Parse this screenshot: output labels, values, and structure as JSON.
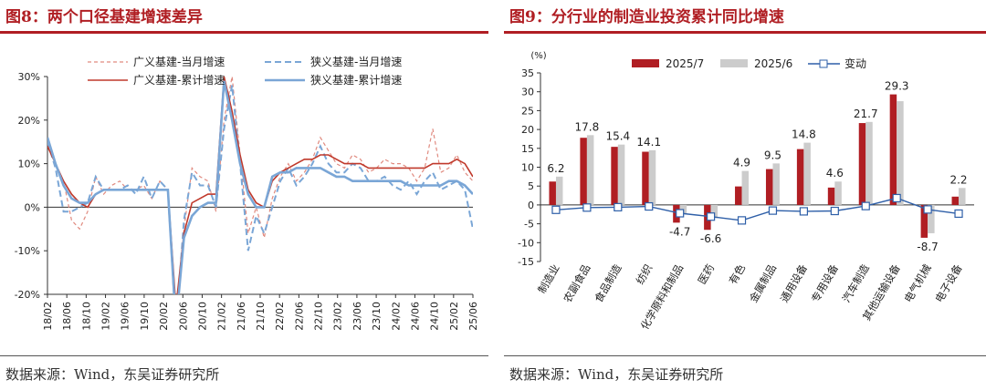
{
  "left": {
    "title": "图8：两个口径基建增速差异",
    "source": "数据来源：Wind，东吴证券研究所"
  },
  "right": {
    "title": "图9：分行业的制造业投资累计同比增速",
    "source": "数据来源：Wind，东吴证券研究所"
  },
  "colors": {
    "accent": "#b01e23",
    "broad": "#c0392b",
    "broad_monthly": "#e08a7f",
    "narrow": "#7aa6d6",
    "narrow_dashed": "#7aa6d6",
    "bar_jul": "#b01e23",
    "bar_jun": "#cccccc",
    "change_line": "#2e5fa8"
  },
  "chart_data": [
    {
      "type": "line",
      "title": "两个口径基建增速差异",
      "x_ticks": [
        "18/02",
        "18/06",
        "18/10",
        "19/02",
        "19/06",
        "19/10",
        "20/02",
        "20/06",
        "20/10",
        "21/02",
        "21/06",
        "21/10",
        "22/02",
        "22/06",
        "22/10",
        "23/02",
        "23/06",
        "23/10",
        "24/02",
        "24/06",
        "24/10",
        "25/02",
        "25/06"
      ],
      "ylim": [
        -20,
        30
      ],
      "y_ticks": [
        "30%",
        "20%",
        "10%",
        "0%",
        "-10%",
        "-20%"
      ],
      "y_tick_values": [
        30,
        20,
        10,
        0,
        -10,
        -20
      ],
      "legend_position": "top",
      "series": [
        {
          "name": "广义基建-当月增速",
          "style": "dashed",
          "values": [
            16,
            10,
            6,
            -3,
            -5,
            -1,
            7,
            3,
            5,
            6,
            4,
            4,
            5,
            2,
            6,
            4,
            -25,
            -5,
            9,
            7,
            6,
            -1,
            20,
            30,
            12,
            -6,
            0,
            -7,
            2,
            7,
            10,
            6,
            8,
            11,
            16,
            13,
            10,
            9,
            12,
            11,
            8,
            9,
            11,
            10,
            10,
            9,
            6,
            9,
            18,
            8,
            9,
            12,
            8,
            6
          ]
        },
        {
          "name": "狭义基建-当月增速",
          "style": "dashed",
          "values": [
            15,
            9,
            -1,
            -1,
            0,
            1,
            7,
            4,
            4,
            4,
            5,
            3,
            7,
            2,
            6,
            4,
            -28,
            -3,
            8,
            5,
            5,
            0,
            18,
            28,
            10,
            -10,
            -2,
            -6,
            0,
            6,
            9,
            5,
            7,
            10,
            14,
            10,
            8,
            8,
            10,
            9,
            6,
            6,
            7,
            5,
            4,
            6,
            3,
            6,
            8,
            4,
            5,
            6,
            4,
            -5
          ]
        },
        {
          "name": "广义基建-累计增速",
          "style": "solid",
          "values": [
            14,
            10,
            6,
            3,
            1,
            0,
            3,
            4,
            4,
            4,
            4,
            4,
            4,
            4,
            4,
            4,
            -23,
            -6,
            1,
            2,
            3,
            3,
            30,
            22,
            12,
            4,
            1,
            0,
            6,
            8,
            9,
            10,
            11,
            11,
            12,
            12,
            11,
            10,
            10,
            10,
            9,
            9,
            9,
            9,
            9,
            9,
            9,
            9,
            10,
            10,
            10,
            11,
            10,
            7
          ]
        },
        {
          "name": "狭义基建-累计增速",
          "style": "solid",
          "values": [
            16,
            10,
            5,
            2,
            1,
            1,
            3,
            4,
            4,
            4,
            4,
            4,
            4,
            4,
            4,
            4,
            -27,
            -7,
            -2,
            0,
            1,
            1,
            29,
            20,
            10,
            3,
            0,
            0,
            7,
            8,
            8,
            9,
            9,
            9,
            9,
            8,
            7,
            7,
            6,
            6,
            6,
            6,
            6,
            6,
            6,
            5,
            5,
            5,
            5,
            5,
            6,
            6,
            5,
            3
          ]
        }
      ]
    },
    {
      "type": "bar",
      "title": "分行业的制造业投资累计同比增速",
      "unit_label": "(%)",
      "categories": [
        "制造业",
        "农副食品",
        "食品制造",
        "纺织",
        "化学原料和制品",
        "医药",
        "有色",
        "金属制品",
        "通用设备",
        "专用设备",
        "汽车制造",
        "其他运输设备",
        "电气机械",
        "电子设备"
      ],
      "ylim": [
        -15,
        35
      ],
      "y_ticks": [
        -15,
        -10,
        -5,
        0,
        5,
        10,
        15,
        20,
        25,
        30,
        35
      ],
      "legend_position": "top",
      "series": [
        {
          "name": "2025/7",
          "values": [
            6.2,
            17.8,
            15.4,
            14.1,
            -4.7,
            -6.6,
            4.9,
            9.5,
            14.8,
            4.6,
            21.7,
            29.3,
            -8.7,
            2.2
          ]
        },
        {
          "name": "2025/6",
          "values": [
            7.5,
            18.5,
            16,
            14.5,
            -2.5,
            -3.5,
            9,
            11,
            16.5,
            6.2,
            22,
            27.5,
            -7.5,
            4.5
          ]
        },
        {
          "name": "变动",
          "style": "line-marker",
          "values": [
            -1.3,
            -0.7,
            -0.6,
            -0.4,
            -2.2,
            -3.1,
            -4.1,
            -1.5,
            -1.7,
            -1.6,
            -0.3,
            1.8,
            -1.2,
            -2.3
          ]
        }
      ],
      "data_labels": [
        "6.2",
        "17.8",
        "15.4",
        "14.1",
        "-4.7",
        "-6.6",
        "4.9",
        "9.5",
        "14.8",
        "4.6",
        "21.7",
        "29.3",
        "-8.7",
        "2.2"
      ]
    }
  ]
}
